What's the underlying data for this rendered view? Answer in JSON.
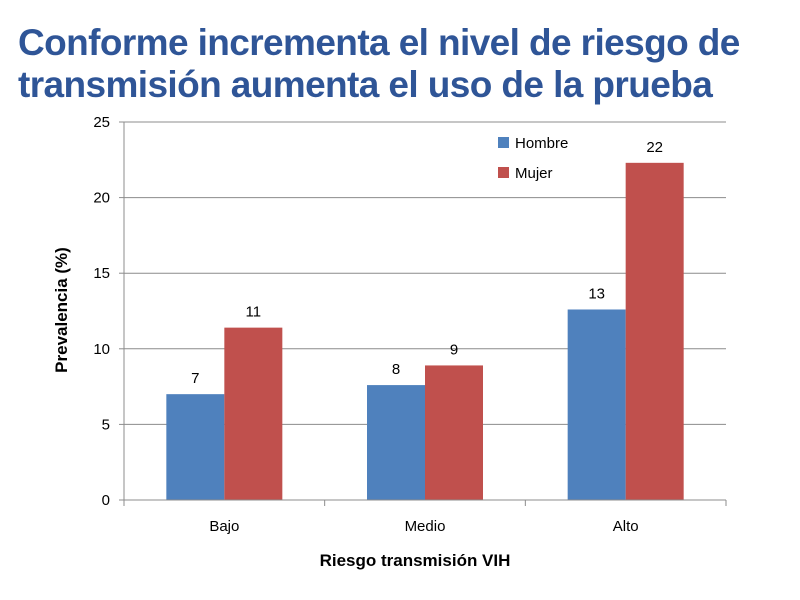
{
  "title": {
    "line1": "Conforme incrementa el nivel de riesgo de",
    "line2": "transmisión aumenta el uso de la prueba"
  },
  "colors": {
    "title": "#2f5597",
    "hombre": "#4f81bd",
    "mujer": "#c0504d",
    "grid": "#8c8c8c",
    "axis": "#8c8c8c"
  },
  "chart_data": {
    "type": "bar",
    "title": "",
    "xlabel": "Riesgo transmisión VIH",
    "ylabel": "Prevalencia (%)",
    "ylim": [
      0,
      25
    ],
    "yticks": [
      "0",
      "5",
      "10",
      "15",
      "20",
      "25"
    ],
    "grid": true,
    "legend_position": "top-right",
    "categories": [
      "Bajo",
      "Medio",
      "Alto"
    ],
    "series": [
      {
        "name": "Hombre",
        "values": [
          7,
          7.6,
          12.6
        ],
        "labels": [
          "7",
          "8",
          "13"
        ]
      },
      {
        "name": "Mujer",
        "values": [
          11.4,
          8.9,
          22.3
        ],
        "labels": [
          "11",
          "9",
          "22"
        ]
      }
    ]
  }
}
